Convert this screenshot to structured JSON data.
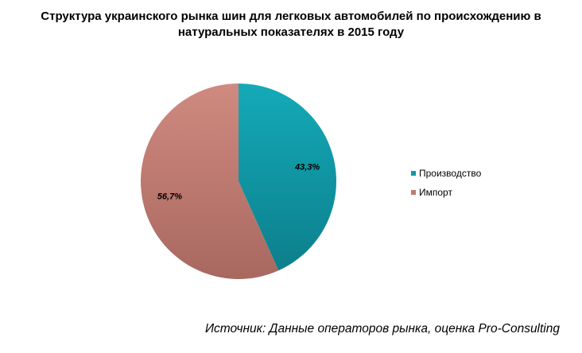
{
  "chart_data": {
    "type": "pie",
    "title_line1": "Структура украинского рынка шин для легковых автомобилей по происхождению в",
    "title_line2": "натуральных показателях в 2015 году",
    "slices": [
      {
        "name": "Производство",
        "value": 43.3,
        "label": "43,3%",
        "color": "#0f9aa8"
      },
      {
        "name": "Импорт",
        "value": 56.7,
        "label": "56,7%",
        "color": "#c17a70"
      }
    ],
    "start_angle": "12 o'clock, clockwise",
    "legend_position": "right"
  },
  "source": "Источник: Данные операторов рынка, оценка Pro-Consulting"
}
